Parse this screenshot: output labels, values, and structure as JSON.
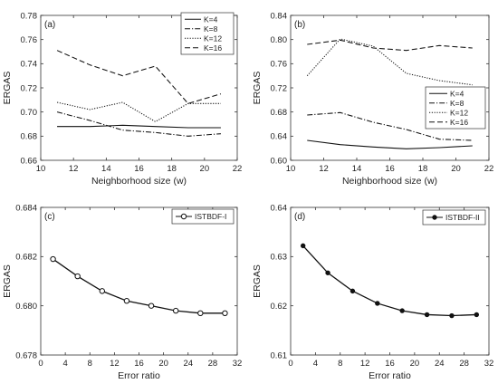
{
  "chart_data": [
    {
      "type": "line",
      "panel_label": "(a)",
      "xlabel": "Neighborhood size (w)",
      "ylabel": "ERGAS",
      "xlim": [
        10,
        22
      ],
      "ylim": [
        0.66,
        0.78
      ],
      "xticks": [
        10,
        12,
        14,
        16,
        18,
        20,
        22
      ],
      "yticks": [
        0.66,
        0.68,
        0.7,
        0.72,
        0.74,
        0.76,
        0.78
      ],
      "legend_position": "top-right",
      "x": [
        11,
        13,
        15,
        17,
        19,
        21
      ],
      "series": [
        {
          "name": "K=4",
          "style": "solid",
          "values": [
            0.688,
            0.688,
            0.689,
            0.688,
            0.687,
            0.687
          ]
        },
        {
          "name": "K=8",
          "style": "dashdot",
          "values": [
            0.7,
            0.693,
            0.685,
            0.683,
            0.68,
            0.682
          ]
        },
        {
          "name": "K=12",
          "style": "dotted",
          "values": [
            0.708,
            0.702,
            0.708,
            0.692,
            0.707,
            0.707
          ]
        },
        {
          "name": "K=16",
          "style": "dashed",
          "values": [
            0.751,
            0.739,
            0.73,
            0.738,
            0.707,
            0.715
          ]
        }
      ]
    },
    {
      "type": "line",
      "panel_label": "(b)",
      "xlabel": "Neighborhood size (w)",
      "ylabel": "ERGAS",
      "xlim": [
        10,
        22
      ],
      "ylim": [
        0.6,
        0.84
      ],
      "xticks": [
        10,
        12,
        14,
        16,
        18,
        20,
        22
      ],
      "yticks": [
        0.6,
        0.64,
        0.68,
        0.72,
        0.76,
        0.8,
        0.84
      ],
      "legend_position": "bottom-right",
      "x": [
        11,
        13,
        15,
        17,
        19,
        21
      ],
      "series": [
        {
          "name": "K=4",
          "style": "solid",
          "values": [
            0.633,
            0.626,
            0.622,
            0.619,
            0.621,
            0.624
          ]
        },
        {
          "name": "K=8",
          "style": "dashdot",
          "values": [
            0.675,
            0.679,
            0.663,
            0.651,
            0.635,
            0.633
          ]
        },
        {
          "name": "K=12",
          "style": "dotted",
          "values": [
            0.74,
            0.801,
            0.789,
            0.744,
            0.732,
            0.725
          ]
        },
        {
          "name": "K=16",
          "style": "dashed",
          "values": [
            0.792,
            0.799,
            0.786,
            0.782,
            0.79,
            0.786
          ]
        }
      ]
    },
    {
      "type": "line",
      "panel_label": "(c)",
      "xlabel": "Error ratio",
      "ylabel": "ERGAS",
      "xlim": [
        0,
        32
      ],
      "ylim": [
        0.678,
        0.684
      ],
      "xticks": [
        0,
        4,
        8,
        12,
        16,
        20,
        24,
        28,
        32
      ],
      "yticks": [
        0.678,
        0.68,
        0.682,
        0.684
      ],
      "legend_position": "top-right",
      "x": [
        2,
        6,
        10,
        14,
        18,
        22,
        26,
        30
      ],
      "series": [
        {
          "name": "ISTBDF-I",
          "style": "solid",
          "marker": "open-circle",
          "values": [
            0.6819,
            0.6812,
            0.6806,
            0.6802,
            0.68,
            0.6798,
            0.6797,
            0.6797
          ]
        }
      ]
    },
    {
      "type": "line",
      "panel_label": "(d)",
      "xlabel": "Error ratio",
      "ylabel": "ERGAS",
      "xlim": [
        0,
        32
      ],
      "ylim": [
        0.61,
        0.64
      ],
      "xticks": [
        0,
        4,
        8,
        12,
        16,
        20,
        24,
        28,
        32
      ],
      "yticks": [
        0.61,
        0.62,
        0.63,
        0.64
      ],
      "legend_position": "top-right",
      "x": [
        2,
        6,
        10,
        14,
        18,
        22,
        26,
        30
      ],
      "series": [
        {
          "name": "ISTBDF-II",
          "style": "solid",
          "marker": "filled-dot",
          "values": [
            0.6322,
            0.6267,
            0.623,
            0.6205,
            0.619,
            0.6182,
            0.618,
            0.6182
          ]
        }
      ]
    }
  ]
}
